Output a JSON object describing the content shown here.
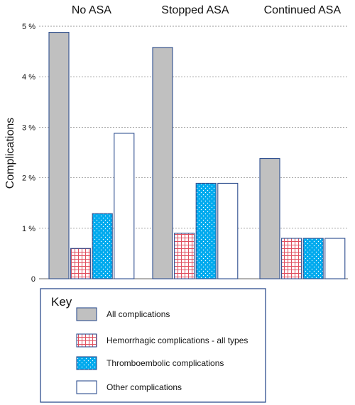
{
  "chart_data": {
    "type": "bar",
    "categories": [
      "No ASA",
      "Stopped ASA",
      "Continued ASA"
    ],
    "ylabel": "Complications",
    "ylim": [
      0,
      5
    ],
    "yticks": [
      {
        "value": 0,
        "label": "0"
      },
      {
        "value": 1,
        "label": "1 %"
      },
      {
        "value": 2,
        "label": "2 %"
      },
      {
        "value": 3,
        "label": "3 %"
      },
      {
        "value": 4,
        "label": "4 %"
      },
      {
        "value": 5,
        "label": "5 %"
      }
    ],
    "grid": true,
    "legend": {
      "title": "Key",
      "placement": "bottom-left"
    },
    "series": [
      {
        "name": "All complications",
        "values": [
          4.88,
          4.58,
          2.38
        ],
        "color": "#c0c0c0",
        "pattern": "solid"
      },
      {
        "name": "Hemorrhagic complications  - all types",
        "values": [
          0.6,
          0.9,
          0.8
        ],
        "color": "#e05060",
        "pattern": "grid"
      },
      {
        "name": "Thromboembolic complications",
        "values": [
          1.29,
          1.89,
          0.8
        ],
        "color": "#00aaee",
        "pattern": "dots"
      },
      {
        "name": "Other complications",
        "values": [
          2.88,
          1.89,
          0.8
        ],
        "color": "#ffffff",
        "pattern": "solid"
      }
    ],
    "colors": {
      "bar_outline": "#2f4f8f",
      "grid": "#9a9a9a",
      "legend_border": "#2f4f8f"
    }
  }
}
